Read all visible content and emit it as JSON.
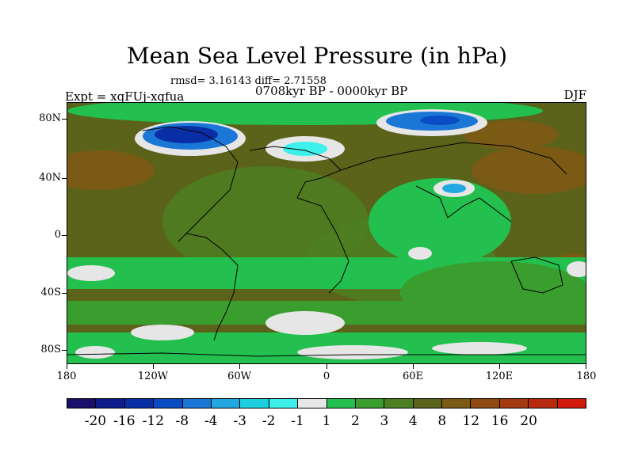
{
  "title": "Mean Sea Level Pressure (in hPa)",
  "stats": "rmsd= 3.16143 diff= 2.71558",
  "left_label": "Expt = xqFUj-xqfua",
  "center_label": "0708kyr BP - 0000kyr BP",
  "right_label": "DJF",
  "lat_ticks": [
    "80N",
    "40N",
    "0",
    "40S",
    "80S"
  ],
  "lon_ticks": [
    "180",
    "120W",
    "60W",
    "0",
    "60E",
    "120E",
    "180"
  ],
  "colorbar": {
    "colors": [
      "#1a0f6b",
      "#0f1d8c",
      "#0a2ea6",
      "#0a4cc4",
      "#1b77d6",
      "#23a7e0",
      "#1ecfe0",
      "#3df0ea",
      "#e6e6e6",
      "#23bf4f",
      "#3a9e2f",
      "#4c7f22",
      "#5a6319",
      "#7a5a15",
      "#8f4a12",
      "#a33a10",
      "#b82a0e",
      "#d01a0c"
    ],
    "labels": [
      "-20",
      "-16",
      "-12",
      "-8",
      "-4",
      "-3",
      "-2",
      "-1",
      "1",
      "2",
      "3",
      "4",
      "8",
      "12",
      "16",
      "20"
    ]
  }
}
